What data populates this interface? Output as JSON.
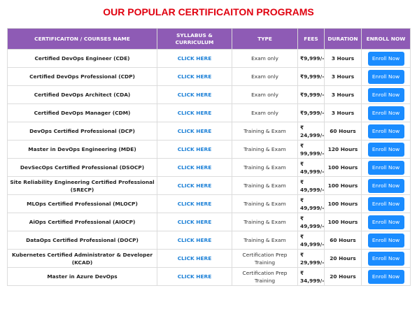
{
  "title": "OUR POPULAR CERTIFICAITON PROGRAMS",
  "table": {
    "header": [
      "CERTIFICAITON / COURSES NAME",
      "SYLLABUS & CURRICULUM",
      "TYPE",
      "FEES",
      "DURATION",
      "ENROLL NOW"
    ],
    "rows": [
      [
        "Certified DevOps Engineer (CDE)",
        "CLICK HERE",
        "Exam only",
        "₹9,999/-",
        "3 Hours",
        "Enroll Now"
      ],
      [
        "Certified DevOps Professional (CDP)",
        "CLICK HERE",
        "Exam only",
        "₹9,999/-",
        "3 Hours",
        "Enroll Now"
      ],
      [
        "Certified DevOps Architect (CDA)",
        "CLICK HERE",
        "Exam only",
        "₹9,999/-",
        "3 Hours",
        "Enroll Now"
      ],
      [
        "Certified DevOps Manager (CDM)",
        "CLICK HERE",
        "Exam only",
        "₹9,999/-",
        "3 Hours",
        "Enroll Now"
      ],
      [
        "DevOps Certified Professional (DCP)",
        "CLICK HERE",
        "Training & Exam",
        "₹ 24,999/-",
        "60 Hours",
        "Enroll Now"
      ],
      [
        "Master in DevOps Engineering (MDE)",
        "CLICK HERE",
        "Training & Exam",
        "₹ 99,999/-",
        "120 Hours",
        "Enroll Now"
      ],
      [
        "DevSecOps Certified Professional (DSOCP)",
        "CLICK HERE",
        "Training & Exam",
        "₹ 49,999/-",
        "100 Hours",
        "Enroll Now"
      ],
      [
        "Site Reliability Engineering Certified Professional (SRECP)",
        "CLICK HERE",
        "Training & Exam",
        "₹ 49,999/-",
        "100 Hours",
        "Enroll Now"
      ],
      [
        "MLOps Certified Professional (MLOCP)",
        "CLICK HERE",
        "Training & Exam",
        "₹ 49,999/-",
        "100 Hours",
        "Enroll Now"
      ],
      [
        "AiOps Certified Professional (AIOCP)",
        "CLICK HERE",
        "Training & Exam",
        "₹ 49,999/-",
        "100 Hours",
        "Enroll Now"
      ],
      [
        "DataOps Certified Professional (DOCP)",
        "CLICK HERE",
        "Training & Exam",
        "₹ 49,999/-",
        "60 Hours",
        "Enroll Now"
      ],
      [
        "Kubernetes Certified Administrator & Developer (KCAD)",
        "CLICK HERE",
        "Certification Prep Training",
        "₹ 29,999/-",
        "20 Hours",
        "Enroll Now"
      ],
      [
        "Master in Azure DevOps",
        "CLICK HERE",
        "Certification Prep Training",
        "₹ 34,999/-",
        "20 Hours",
        "Enroll Now"
      ]
    ]
  }
}
